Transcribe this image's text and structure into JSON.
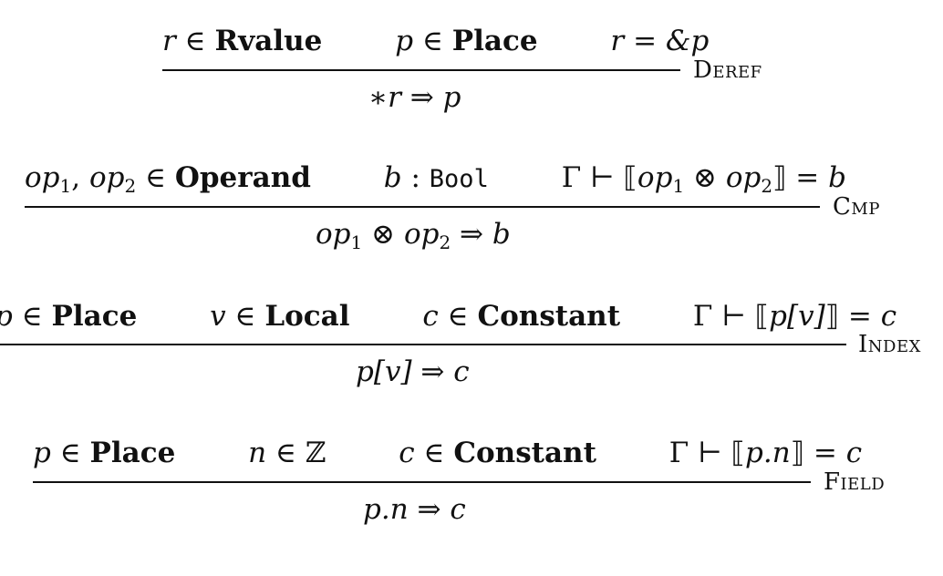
{
  "rules": [
    {
      "name": "Deref",
      "premises": {
        "p1": {
          "var": "r",
          "rel": " ∈ ",
          "set": "Rvalue"
        },
        "p2": {
          "var": "p",
          "rel": " ∈ ",
          "set": "Place"
        },
        "p3": {
          "lhs": "r",
          "rel": " = ",
          "rhs": "&p"
        }
      },
      "conclusion": {
        "lhs": "∗r",
        "arrow": " ⇒ ",
        "rhs": "p"
      }
    },
    {
      "name": "Cmp",
      "premises": {
        "p1": {
          "v1": "op",
          "s1": "1",
          "sep": ", ",
          "v2": "op",
          "s2": "2",
          "rel": " ∈ ",
          "set": "Operand"
        },
        "p2": {
          "var": "b",
          "rel": " : ",
          "type": "Bool"
        },
        "p3": {
          "ctx": "Γ ⊢ ⟦",
          "v1": "op",
          "s1": "1",
          "op": " ⊗ ",
          "v2": "op",
          "s2": "2",
          "close": "⟧ = ",
          "res": "b"
        }
      },
      "conclusion": {
        "v1": "op",
        "s1": "1",
        "op": " ⊗ ",
        "v2": "op",
        "s2": "2",
        "arrow": " ⇒ ",
        "rhs": "b"
      }
    },
    {
      "name": "Index",
      "premises": {
        "p1": {
          "var": "p",
          "rel": " ∈ ",
          "set": "Place"
        },
        "p2": {
          "var": "v",
          "rel": " ∈ ",
          "set": "Local"
        },
        "p3": {
          "var": "c",
          "rel": " ∈ ",
          "set": "Constant"
        },
        "p4": {
          "ctx": "Γ ⊢ ⟦",
          "expr": "p[v]",
          "close": "⟧ = ",
          "res": "c"
        }
      },
      "conclusion": {
        "lhs": "p[v]",
        "arrow": " ⇒ ",
        "rhs": "c"
      }
    },
    {
      "name": "Field",
      "premises": {
        "p1": {
          "var": "p",
          "rel": " ∈ ",
          "set": "Place"
        },
        "p2": {
          "var": "n",
          "rel": " ∈ ",
          "set": "ℤ"
        },
        "p3": {
          "var": "c",
          "rel": " ∈ ",
          "set": "Constant"
        },
        "p4": {
          "ctx": "Γ ⊢ ⟦",
          "expr": "p.n",
          "close": "⟧ = ",
          "res": "c"
        }
      },
      "conclusion": {
        "lhs": "p.n",
        "arrow": " ⇒ ",
        "rhs": "c"
      }
    }
  ]
}
